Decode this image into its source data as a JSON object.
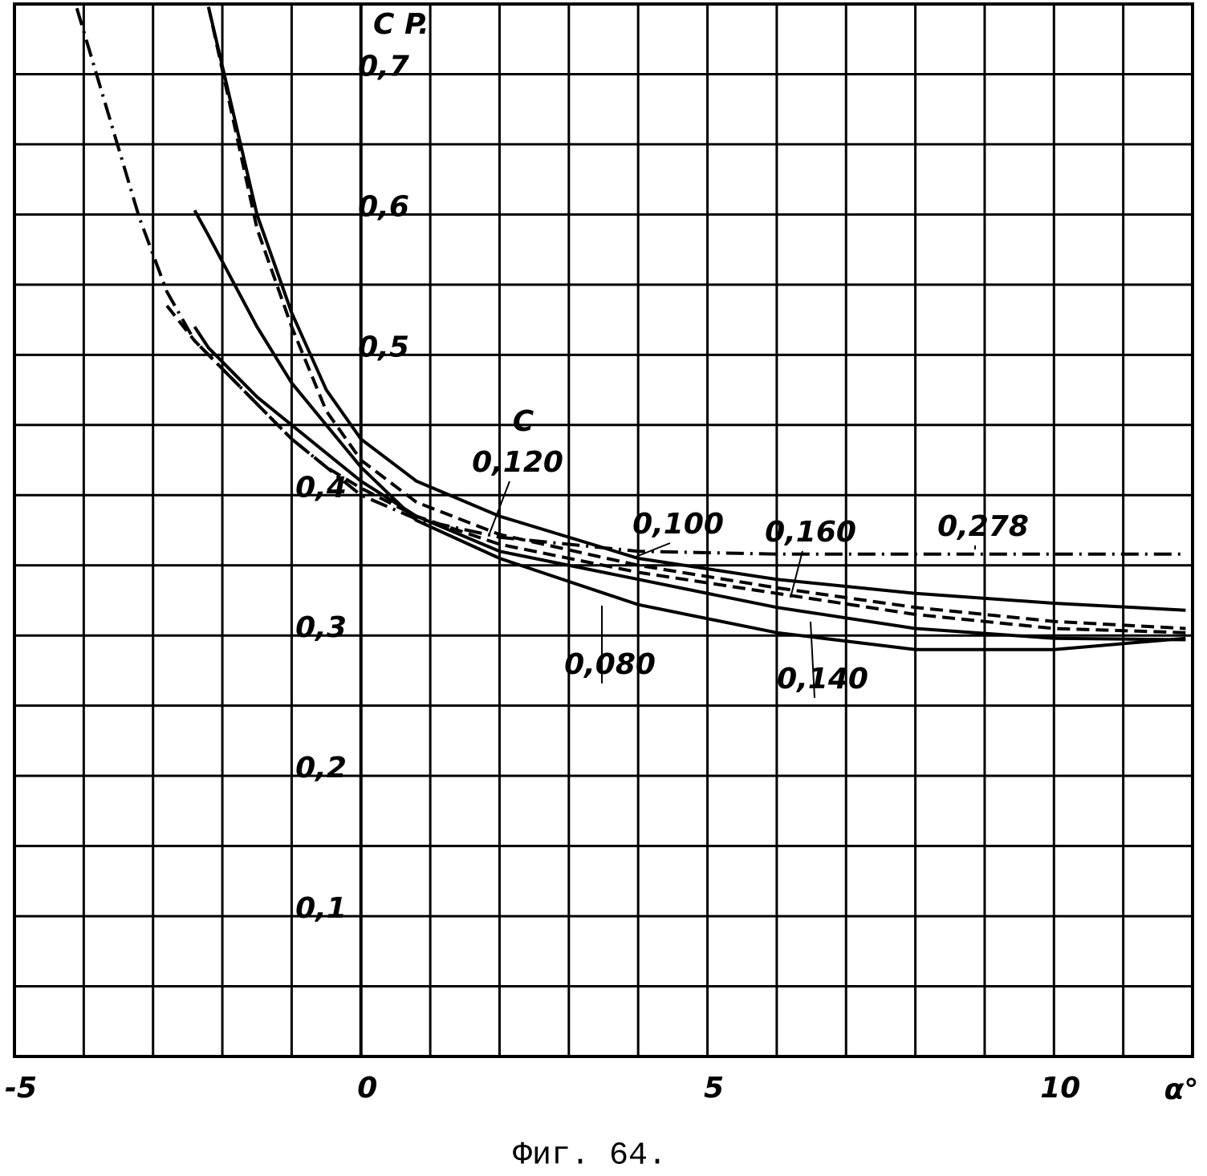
{
  "chart_data": {
    "type": "line",
    "y_label": "C P.",
    "x_label": "α°",
    "caption": "Фиг. 64.",
    "label_heading": "C",
    "x": [
      -4.1,
      -3.2,
      -2.8,
      -2.4,
      -2.2,
      -1.5,
      -1,
      -0.5,
      0,
      0.8,
      2,
      4,
      6,
      8,
      10,
      11.9
    ],
    "series": [
      {
        "name": "0,278",
        "color": "#000",
        "style": "dash-dot",
        "values": [
          0.747,
          0.598,
          0.545,
          0.51,
          0.5,
          0.465,
          0.44,
          0.42,
          0.4,
          0.383,
          0.37,
          0.36,
          0.358,
          0.358,
          0.358,
          0.358
        ]
      },
      {
        "name": "0,080",
        "color": "#000",
        "style": "solid",
        "values": [
          null,
          null,
          null,
          0.603,
          0.585,
          0.52,
          0.48,
          0.45,
          0.42,
          0.382,
          0.355,
          0.322,
          0.302,
          0.29,
          0.29,
          0.298
        ]
      },
      {
        "name": "0,100",
        "color": "#000",
        "style": "solid",
        "values": [
          null,
          null,
          null,
          null,
          0.748,
          0.6,
          0.53,
          0.475,
          0.44,
          0.41,
          0.385,
          0.355,
          0.34,
          0.33,
          0.323,
          0.318
        ]
      },
      {
        "name": "0,160",
        "color": "#000",
        "style": "dash",
        "values": [
          null,
          null,
          null,
          null,
          0.748,
          0.59,
          0.52,
          0.46,
          0.425,
          0.395,
          0.372,
          0.35,
          0.334,
          0.32,
          0.31,
          0.305
        ]
      },
      {
        "name": "0,120",
        "color": "#000",
        "style": "dash",
        "values": [
          null,
          null,
          0.535,
          0.51,
          0.5,
          0.465,
          0.44,
          0.42,
          0.405,
          0.385,
          0.365,
          0.345,
          0.33,
          0.315,
          0.305,
          0.302
        ]
      },
      {
        "name": "0,140",
        "color": "#000",
        "style": "solid",
        "values": [
          null,
          null,
          null,
          0.52,
          0.505,
          0.47,
          0.45,
          0.43,
          0.41,
          0.385,
          0.36,
          0.34,
          0.32,
          0.305,
          0.298,
          0.297
        ]
      }
    ],
    "xlim": [
      -5,
      12
    ],
    "ylim": [
      0,
      0.75
    ],
    "xticks": [
      -5,
      0,
      5,
      10
    ],
    "yticks": [
      {
        "value": 0.1,
        "label": "0,1"
      },
      {
        "value": 0.2,
        "label": "0,2"
      },
      {
        "value": 0.3,
        "label": "0,3"
      },
      {
        "value": 0.4,
        "label": "0,4"
      },
      {
        "value": 0.5,
        "label": "0,5"
      },
      {
        "value": 0.6,
        "label": "0,6"
      },
      {
        "value": 0.7,
        "label": "0,7"
      }
    ],
    "xgrid": [
      -4,
      -3,
      -2,
      -1,
      1,
      2,
      3,
      4,
      6,
      7,
      8,
      9,
      11
    ],
    "ygrid": [
      0.05,
      0.15,
      0.25,
      0.35,
      0.45,
      0.55,
      0.65,
      0.75
    ],
    "grid": true
  }
}
